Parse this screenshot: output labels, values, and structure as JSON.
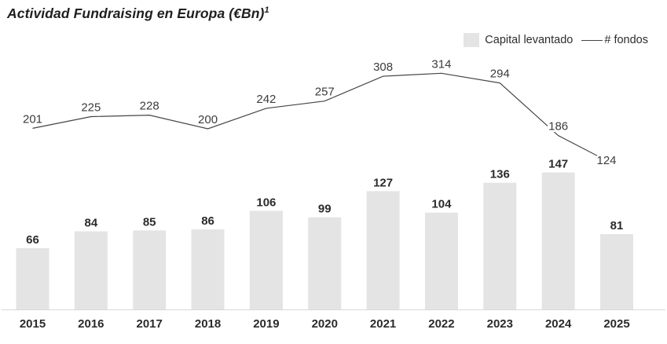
{
  "title": {
    "text": "Actividad Fundraising en Europa (€Bn)",
    "superscript": "1"
  },
  "legend": [
    {
      "swatch": "bar-swatch",
      "label": "Capital levantado"
    },
    {
      "swatch": "line-glyph",
      "label": "# fondos"
    }
  ],
  "colors": {
    "bar": "#e4e4e4",
    "line": "#454545",
    "axis": "#d9d9d9",
    "bar_label": "#2b2b2b",
    "year_label": "#2b2b2b",
    "line_label": "#3c3c3c",
    "background": "#ffffff"
  },
  "chart_data": {
    "type": "bar",
    "combo": "bar+line",
    "title": "Actividad Fundraising en Europa (€Bn)¹",
    "xlabel": "",
    "ylabel": "",
    "categories": [
      "2015",
      "2016",
      "2017",
      "2018",
      "2019",
      "2020",
      "2021",
      "2022",
      "2023",
      "2024",
      "2025"
    ],
    "series": [
      {
        "name": "Capital levantado",
        "type": "bar",
        "unit": "€Bn",
        "values": [
          66,
          84,
          85,
          86,
          106,
          99,
          127,
          104,
          136,
          147,
          81
        ]
      },
      {
        "name": "# fondos",
        "type": "line",
        "unit": "count",
        "values": [
          201,
          225,
          228,
          200,
          242,
          257,
          308,
          314,
          294,
          186,
          124
        ]
      }
    ],
    "layout": {
      "legend_position": "top-right",
      "grid": false,
      "data_labels": true,
      "bar_axis_implied_range": [
        0,
        180
      ],
      "line_secondary_axis": true,
      "line_axis_implied_range": [
        0,
        350
      ],
      "line_label_offsets": {
        "10": {
          "dx": -13,
          "dy": 5
        }
      }
    }
  }
}
